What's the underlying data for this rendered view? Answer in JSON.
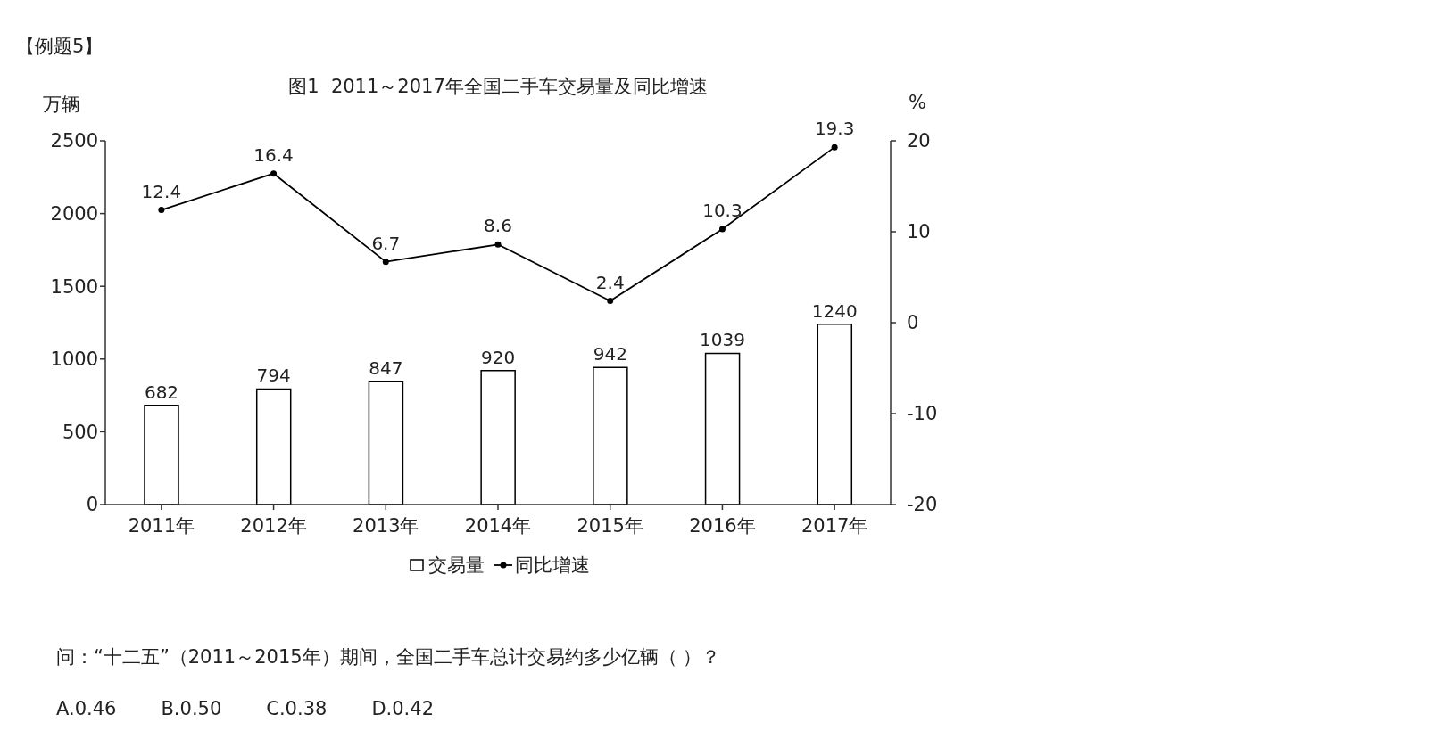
{
  "chart_data": {
    "type": "bar",
    "title": "图1  2011～2017年全国二手车交易量及同比增速",
    "ylabel": "万辆",
    "y2label": "%",
    "categories": [
      "2011年",
      "2012年",
      "2013年",
      "2014年",
      "2015年",
      "2016年",
      "2017年"
    ],
    "series": [
      {
        "name": "交易量",
        "color": "#ffffff",
        "values": [
          682,
          794,
          847,
          920,
          942,
          1039,
          1240
        ]
      },
      {
        "name": "同比增速",
        "type": "line",
        "axis": "y2",
        "color": "#000000",
        "values": [
          12.4,
          16.4,
          6.7,
          8.6,
          2.4,
          10.3,
          19.3
        ]
      }
    ],
    "ylim": [
      0,
      2500
    ],
    "yticks": [
      0,
      500,
      1000,
      1500,
      2000,
      2500
    ],
    "y2lim": [
      -20,
      20
    ],
    "y2ticks": [
      -20,
      -10,
      0,
      10,
      20
    ],
    "data_labels": true,
    "grid": false,
    "legend": "bottom",
    "marker": "circle",
    "line_style": "solid",
    "annotations": [
      "【例题5】",
      "问：“十二五”（2011～2015年）期间，全国二手车总计交易约多少亿辆（  ）？",
      "A.0.46",
      "B.0.50",
      "C.0.38",
      "D.0.42"
    ]
  }
}
